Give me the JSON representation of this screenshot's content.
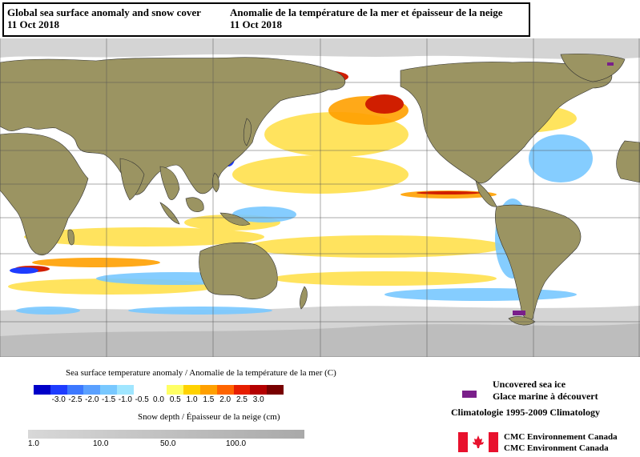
{
  "title": {
    "en_title": "Global sea surface anomaly and snow cover",
    "en_date": "11 Oct 2018",
    "fr_title": "Anomalie de la température de la mer et épaisseur de la neige",
    "fr_date": "11 Oct 2018"
  },
  "legend": {
    "sst_label": "Sea surface temperature anomaly / Anomalie de la température de la mer (C)",
    "sst_colors": [
      "#0000c8",
      "#1e3cff",
      "#3c78ff",
      "#5aa0ff",
      "#78c8ff",
      "#a0e6ff",
      "#ffffff",
      "#ffffff",
      "#ffff64",
      "#ffd200",
      "#ffa000",
      "#ff6400",
      "#e61e00",
      "#b40000",
      "#780000"
    ],
    "sst_ticks": [
      "-3.0",
      "-2.5",
      "-2.0",
      "-1.5",
      "-1.0",
      "-0.5",
      "0.0",
      "0.5",
      "1.0",
      "1.5",
      "2.0",
      "2.5",
      "3.0"
    ],
    "snow_label": "Snow depth / Épaisseur de la neige (cm)",
    "snow_ticks": [
      "1.0",
      "10.0",
      "50.0",
      "100.0"
    ],
    "ice_en": "Uncovered sea ice",
    "ice_fr": "Glace marine à découvert",
    "ice_color": "#7a1f8a",
    "climatology": "Climatologie 1995-2009 Climatology",
    "agency_fr": "CMC Environnement Canada",
    "agency_en": "CMC Environment Canada"
  },
  "colors": {
    "land": "#9b9462",
    "snow": "#d4d4d4",
    "ocean": "#ffffff",
    "flag_red": "#e8112d"
  }
}
